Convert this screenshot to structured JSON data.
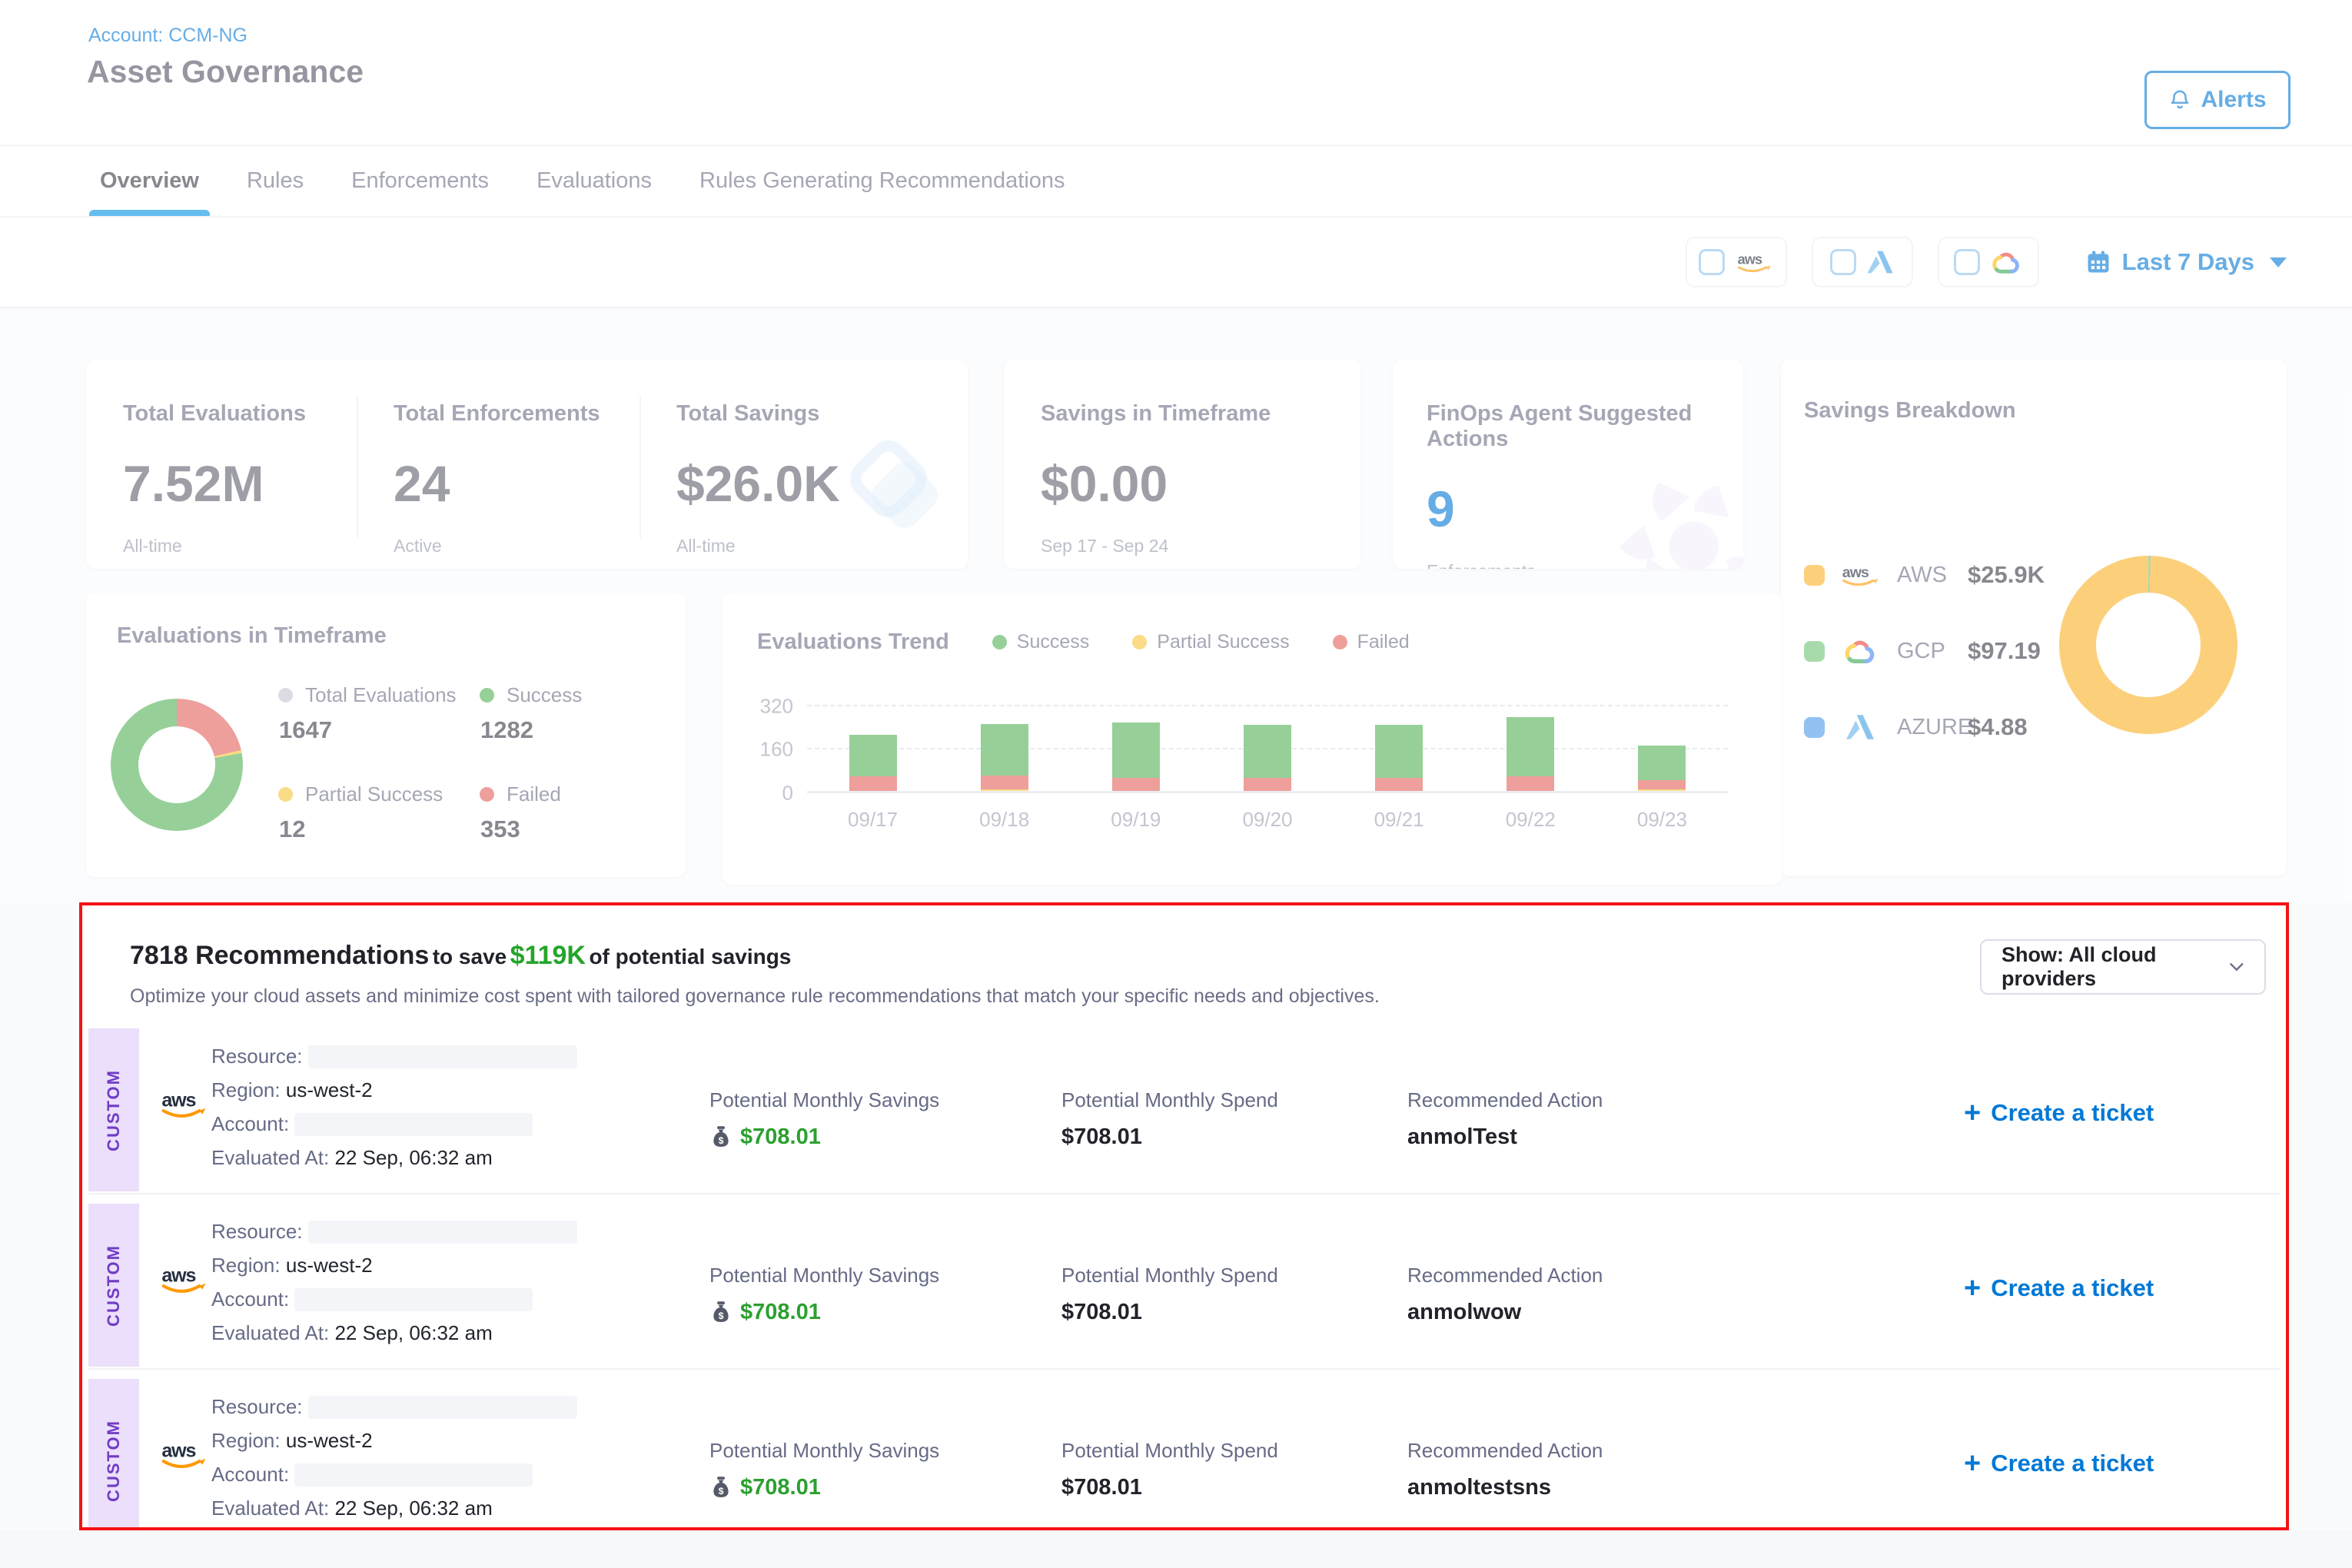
{
  "palette": {
    "blue": "#0278D5",
    "tab_underline": "#0092E4",
    "money_green": "#2BA02F",
    "success": "#52B255",
    "partial": "#F7C537",
    "failed": "#E3615A",
    "aws_yellow": "#FBB124",
    "gcp_swatch": "#6FC475",
    "azure_swatch": "#4C9BE8",
    "total_gray": "#C5C6D4",
    "purple": "#7D4BD6",
    "highlight_red": "#F51313"
  },
  "header": {
    "account": "Account: CCM-NG",
    "title": "Asset Governance",
    "alerts": "Alerts"
  },
  "tabs": {
    "items": [
      "Overview",
      "Rules",
      "Enforcements",
      "Evaluations",
      "Rules Generating Recommendations"
    ],
    "active": "Overview"
  },
  "filters": {
    "providers": [
      "aws",
      "azure",
      "gcp"
    ],
    "date_range": "Last 7 Days"
  },
  "stats": [
    {
      "title": "Total Evaluations",
      "value": "7.52M",
      "caption": "All-time"
    },
    {
      "title": "Total Enforcements",
      "value": "24",
      "caption": "Active"
    },
    {
      "title": "Total Savings",
      "value": "$26.0K",
      "caption": "All-time"
    }
  ],
  "savings_timeframe": {
    "title": "Savings in Timeframe",
    "value": "$0.00",
    "caption": "Sep 17 - Sep 24"
  },
  "finops": {
    "title": "FinOps Agent Suggested Actions",
    "value": "9",
    "caption": "Enforcements"
  },
  "savings_breakdown": {
    "title": "Savings Breakdown",
    "items": [
      {
        "provider": "AWS",
        "amount": "$25.9K",
        "color_key": "aws_yellow"
      },
      {
        "provider": "GCP",
        "amount": "$97.19",
        "color_key": "gcp_swatch"
      },
      {
        "provider": "AZURE",
        "amount": "$4.88",
        "color_key": "azure_swatch"
      }
    ]
  },
  "evaluations_timeframe": {
    "title": "Evaluations in Timeframe",
    "legend": [
      {
        "label": "Total Evaluations",
        "value": "1647",
        "color_key": "total_gray"
      },
      {
        "label": "Success",
        "value": "1282",
        "color_key": "success"
      },
      {
        "label": "Partial Success",
        "value": "12",
        "color_key": "partial"
      },
      {
        "label": "Failed",
        "value": "353",
        "color_key": "failed"
      }
    ]
  },
  "evaluations_trend": {
    "title": "Evaluations Trend",
    "legend": [
      {
        "label": "Success",
        "color_key": "success"
      },
      {
        "label": "Partial Success",
        "color_key": "partial"
      },
      {
        "label": "Failed",
        "color_key": "failed"
      }
    ]
  },
  "chart_data": [
    {
      "id": "evaluations_in_timeframe_donut",
      "type": "pie",
      "title": "Evaluations in Timeframe",
      "total_evaluations": 1647,
      "slices": [
        {
          "label": "Failed",
          "value": 353,
          "color_key": "failed"
        },
        {
          "label": "Partial Success",
          "value": 12,
          "color_key": "partial"
        },
        {
          "label": "Success",
          "value": 1282,
          "color_key": "success"
        }
      ]
    },
    {
      "id": "savings_breakdown_donut",
      "type": "pie",
      "title": "Savings Breakdown",
      "slices": [
        {
          "label": "GCP",
          "value": 97.19,
          "color_key": "gcp_swatch"
        },
        {
          "label": "AZURE",
          "value": 4.88,
          "color_key": "azure_swatch"
        },
        {
          "label": "AWS",
          "value": 25900,
          "color_key": "aws_yellow"
        }
      ]
    },
    {
      "id": "evaluations_trend",
      "type": "bar",
      "stacked": true,
      "title": "Evaluations Trend",
      "categories": [
        "09/17",
        "09/18",
        "09/19",
        "09/20",
        "09/21",
        "09/22",
        "09/23"
      ],
      "series": [
        {
          "name": "Partial Success",
          "color_key": "partial",
          "values": [
            0,
            6,
            0,
            0,
            0,
            0,
            6
          ]
        },
        {
          "name": "Failed",
          "color_key": "failed",
          "values": [
            55,
            52,
            50,
            50,
            50,
            55,
            35
          ]
        },
        {
          "name": "Success",
          "color_key": "success",
          "values": [
            155,
            190,
            205,
            197,
            197,
            220,
            127
          ]
        }
      ],
      "ylim": [
        0,
        320
      ],
      "yticks": [
        0,
        160,
        320
      ],
      "xlabel": "",
      "ylabel": "",
      "legend_position": "top",
      "gridlines": "dashed"
    }
  ],
  "recommendations": {
    "heading_bold": "7818 Recommendations",
    "heading_mid": "to save",
    "heading_amount": "$119K",
    "heading_tail": "of potential savings",
    "description": "Optimize your cloud assets and minimize cost spent with tailored governance rule recommendations that match your specific needs and objectives.",
    "dropdown": "Show: All cloud providers",
    "tag": "CUSTOM",
    "labels": {
      "resource": "Resource:",
      "region": "Region:",
      "account": "Account:",
      "evaluated": "Evaluated At:",
      "savings": "Potential Monthly Savings",
      "spend": "Potential Monthly Spend",
      "action": "Recommended Action"
    },
    "ticket": "Create a ticket",
    "rows": [
      {
        "region": "us-west-2",
        "evaluated": "22 Sep, 06:32 am",
        "savings": "$708.01",
        "spend": "$708.01",
        "action": "anmolTest"
      },
      {
        "region": "us-west-2",
        "evaluated": "22 Sep, 06:32 am",
        "savings": "$708.01",
        "spend": "$708.01",
        "action": "anmolwow"
      },
      {
        "region": "us-west-2",
        "evaluated": "22 Sep, 06:32 am",
        "savings": "$708.01",
        "spend": "$708.01",
        "action": "anmoltestsns"
      }
    ]
  }
}
